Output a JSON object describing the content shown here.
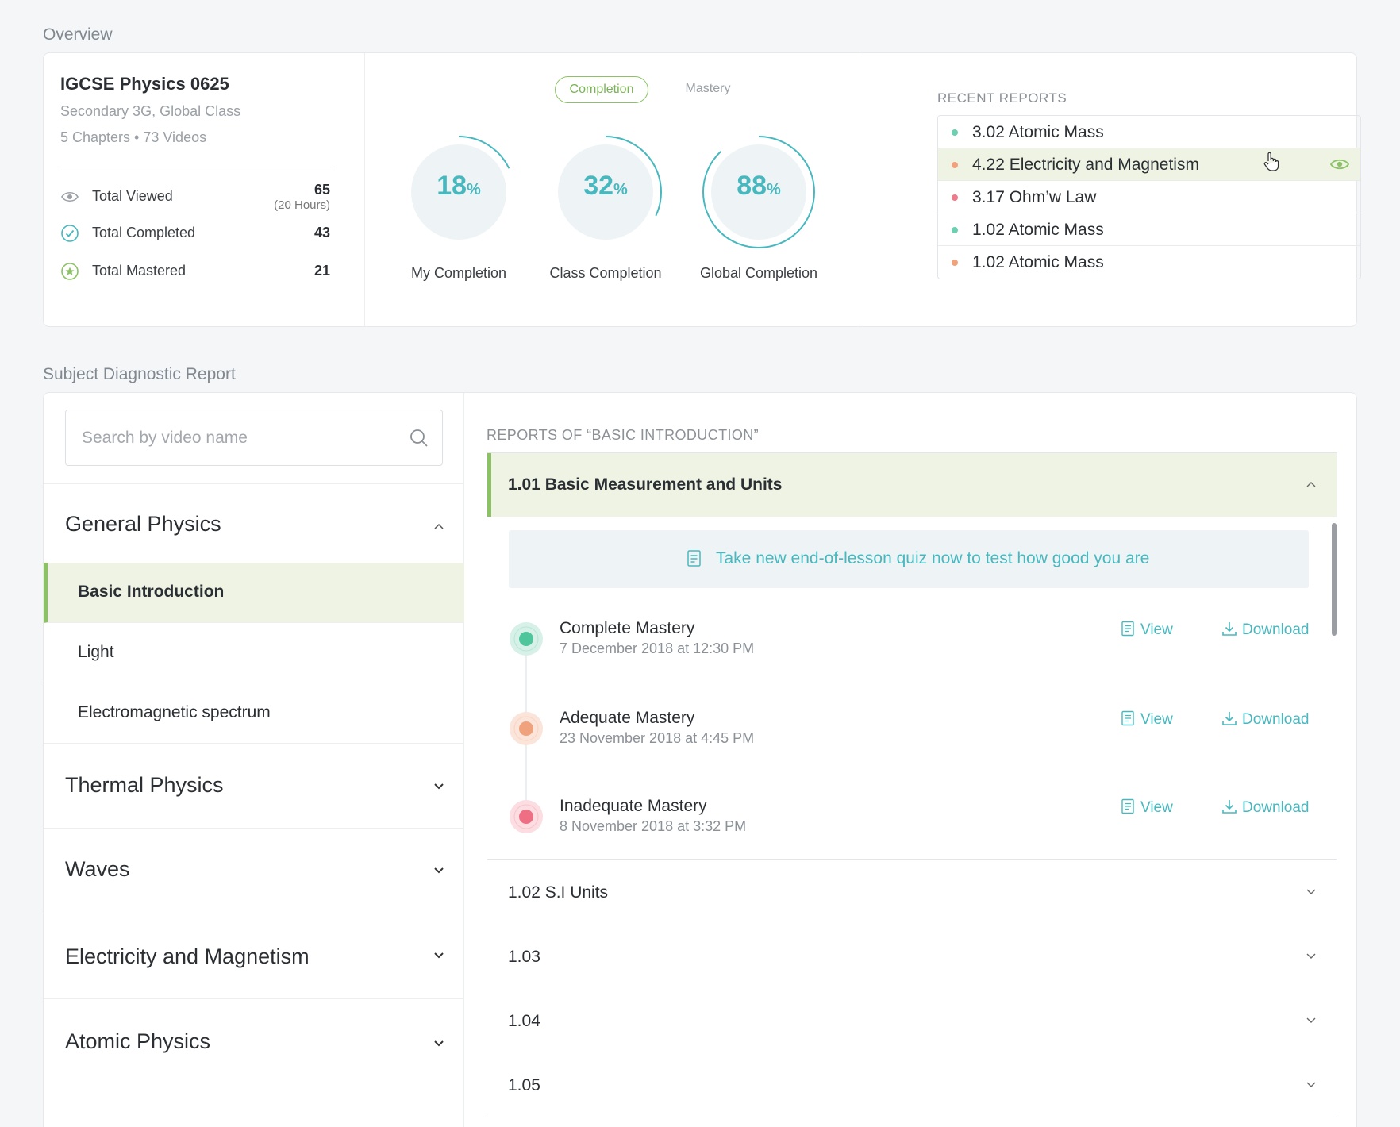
{
  "overview": {
    "section_title": "Overview",
    "course": {
      "title": "IGCSE Physics 0625",
      "class": "Secondary 3G, Global Class",
      "meta": "5 Chapters • 73 Videos"
    },
    "stats": [
      {
        "label": "Total Viewed",
        "value": "65",
        "sub": "(20 Hours)",
        "icon": "eye-icon"
      },
      {
        "label": "Total Completed",
        "value": "43",
        "icon": "check-circle-icon"
      },
      {
        "label": "Total Mastered",
        "value": "21",
        "icon": "star-circle-icon"
      }
    ],
    "toggle": {
      "active": "Completion",
      "inactive": "Mastery"
    },
    "rings": [
      {
        "label": "My Completion",
        "value": "18",
        "unit": "%",
        "percent": 18
      },
      {
        "label": "Class Completion",
        "value": "32",
        "unit": "%",
        "percent": 32
      },
      {
        "label": "Global Completion",
        "value": "88",
        "unit": "%",
        "percent": 88
      }
    ],
    "recent": {
      "title": "RECENT REPORTS",
      "items": [
        {
          "label": "3.02 Atomic Mass",
          "color": "#6dcfb1"
        },
        {
          "label": "4.22 Electricity and Magnetism",
          "color": "#f0a27c"
        },
        {
          "label": "3.17 Ohm’w Law",
          "color": "#ee7a8c"
        },
        {
          "label": "1.02 Atomic Mass",
          "color": "#6dcfb1"
        },
        {
          "label": "1.02 Atomic Mass",
          "color": "#f0a27c"
        }
      ]
    }
  },
  "diagnostic": {
    "section_title": "Subject Diagnostic Report",
    "search": {
      "placeholder": "Search by video name"
    },
    "topics": {
      "general": "General Physics",
      "subtopics": [
        "Basic Introduction",
        "Light",
        "Electromagnetic spectrum"
      ],
      "others": [
        "Thermal Physics",
        "Waves",
        "Electricity and Magnetism",
        "Atomic Physics"
      ]
    },
    "reports_title": "REPORTS OF “BASIC INTRODUCTION”",
    "open_item": {
      "title": "1.01 Basic Measurement and Units",
      "quiz_text": "Take new end-of-lesson quiz now to test how good you are",
      "entries": [
        {
          "title": "Complete Mastery",
          "date": "7 December 2018 at 12:30 PM",
          "color": "#4fc59c",
          "halo": "#d7f1e8"
        },
        {
          "title": "Adequate Mastery",
          "date": "23 November 2018 at 4:45 PM",
          "color": "#f0a27c",
          "halo": "#fbe4d9"
        },
        {
          "title": "Inadequate Mastery",
          "date": "8 November 2018 at 3:32 PM",
          "color": "#ee6f84",
          "halo": "#fbdde2"
        }
      ],
      "view_label": "View",
      "download_label": "Download"
    },
    "collapsed_items": [
      "1.02 S.I Units",
      "1.03",
      "1.04",
      "1.05"
    ]
  },
  "colors": {
    "accent": "#48b8bf",
    "green": "#8cc265",
    "highlight": "#eef3e4"
  }
}
